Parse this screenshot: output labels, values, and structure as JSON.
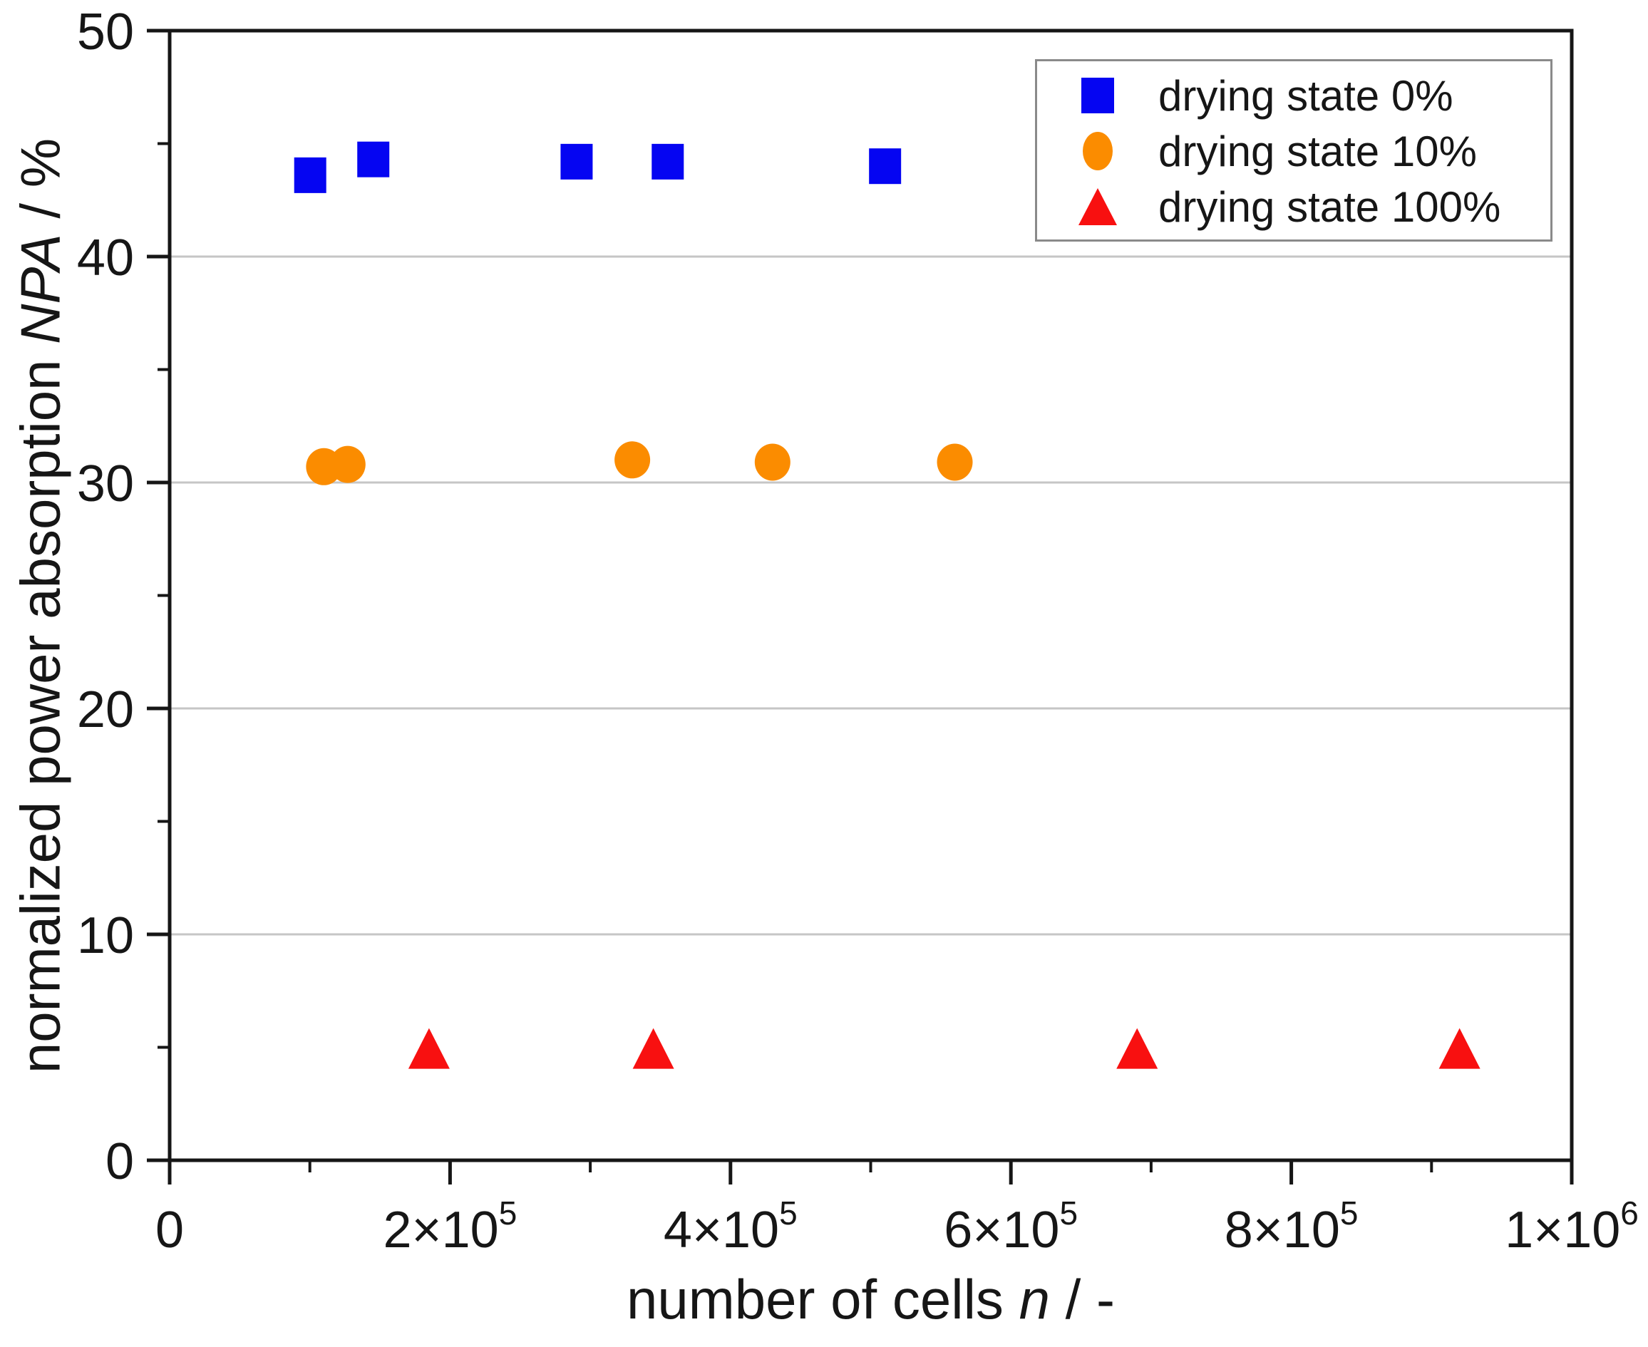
{
  "colors": {
    "background": "#ffffff",
    "axis": "#161616",
    "grid": "#c6c6c6",
    "legend_border": "#8a8a8a"
  },
  "chart_data": {
    "type": "scatter",
    "title": "",
    "xlabel": "number of cells n / -",
    "ylabel": "normalized power absorption NPA / %",
    "xlabel_parts": {
      "prefix": "number of cells ",
      "symbol": "n",
      "suffix": " / -"
    },
    "ylabel_parts": {
      "prefix": "normalized power absorption ",
      "symbol": "NPA",
      "suffix": " / %"
    },
    "xlim": [
      0,
      1000000
    ],
    "ylim": [
      0,
      50
    ],
    "x_major_ticks": [
      0,
      200000,
      400000,
      600000,
      800000,
      1000000
    ],
    "x_tick_labels": [
      {
        "base": "0",
        "sup": ""
      },
      {
        "base": "2×10",
        "sup": "5"
      },
      {
        "base": "4×10",
        "sup": "5"
      },
      {
        "base": "6×10",
        "sup": "5"
      },
      {
        "base": "8×10",
        "sup": "5"
      },
      {
        "base": "1×10",
        "sup": "6"
      }
    ],
    "x_minor_ticks": [
      100000,
      300000,
      500000,
      700000,
      900000
    ],
    "y_major_ticks": [
      0,
      10,
      20,
      30,
      40,
      50
    ],
    "y_tick_labels": [
      "0",
      "10",
      "20",
      "30",
      "40",
      "50"
    ],
    "y_minor_ticks": [
      5,
      15,
      25,
      35,
      45
    ],
    "grid": true,
    "grid_y": [
      10,
      20,
      30,
      40
    ],
    "legend_position": "top-right",
    "series": [
      {
        "name": "drying state 0%",
        "marker": "square",
        "color": "#0505f2",
        "points": [
          [
            100000,
            43.6
          ],
          [
            145000,
            44.3
          ],
          [
            290000,
            44.2
          ],
          [
            355000,
            44.2
          ],
          [
            510000,
            44.0
          ]
        ]
      },
      {
        "name": "drying state 10%",
        "marker": "circle",
        "color": "#fb8c00",
        "points": [
          [
            110000,
            30.7
          ],
          [
            127000,
            30.8
          ],
          [
            330000,
            31.0
          ],
          [
            430000,
            30.9
          ],
          [
            560000,
            30.9
          ]
        ]
      },
      {
        "name": "drying state 100%",
        "marker": "triangle",
        "color": "#f81010",
        "points": [
          [
            185000,
            4.9
          ],
          [
            345000,
            4.9
          ],
          [
            690000,
            4.9
          ],
          [
            920000,
            4.9
          ]
        ]
      }
    ]
  }
}
